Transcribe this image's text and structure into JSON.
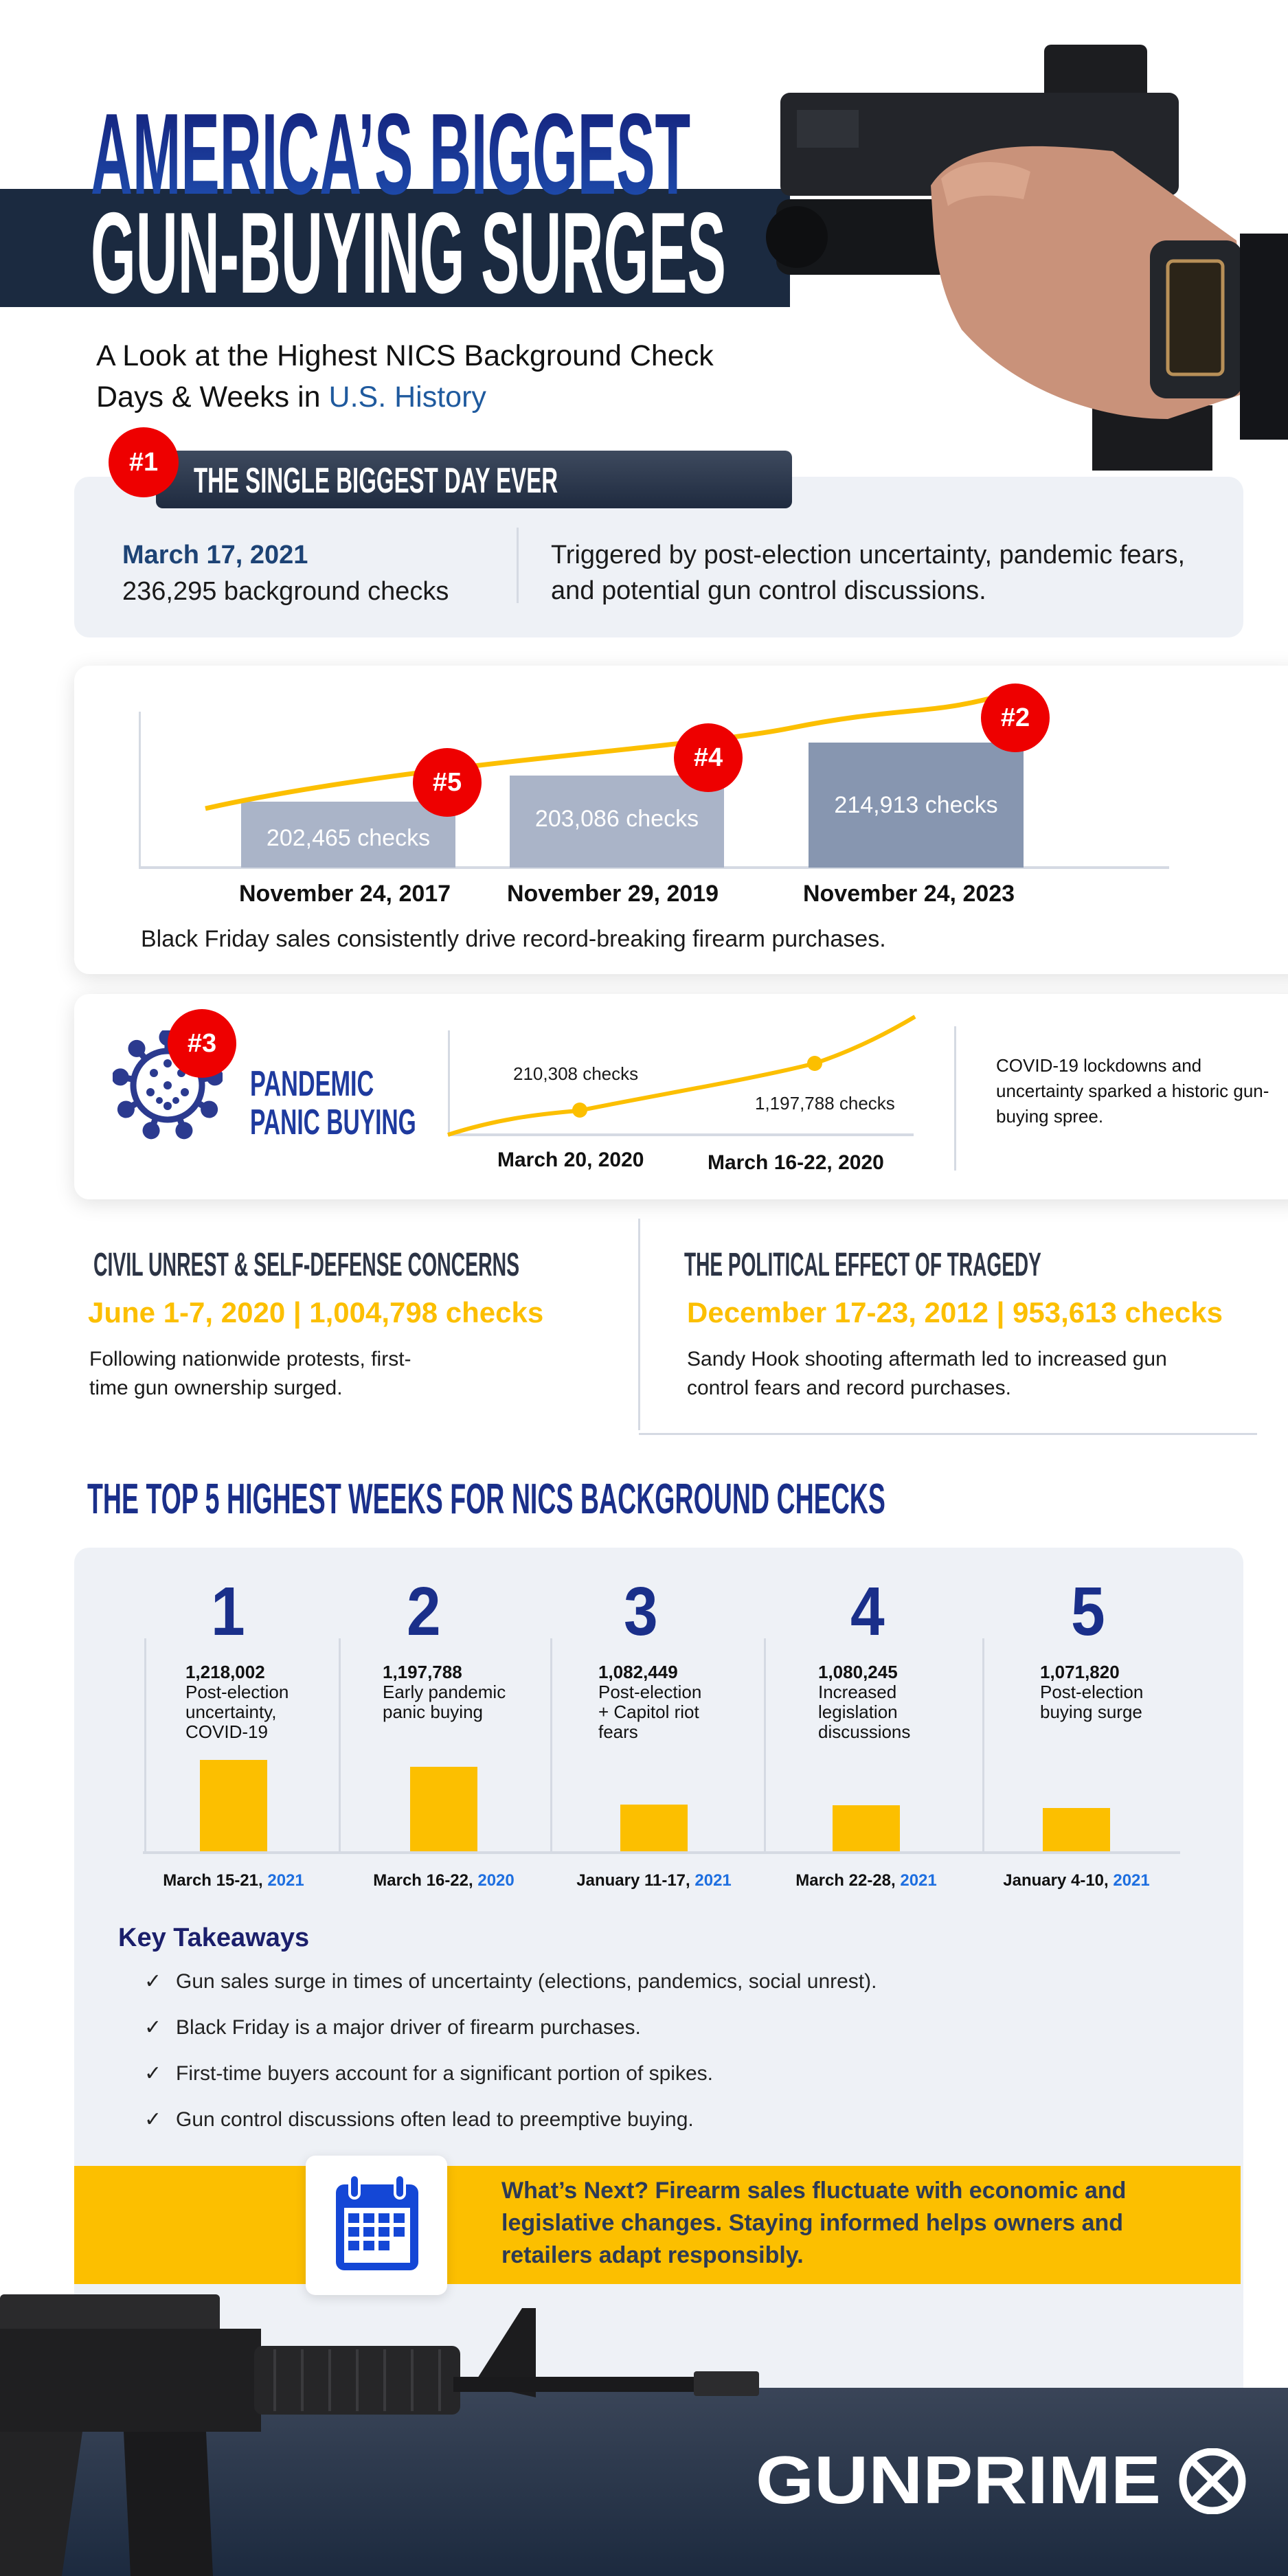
{
  "header": {
    "title_line1": "AMERICA’S BIGGEST",
    "title_line2": "GUN-BUYING SURGES",
    "subtitle_line1": "A Look at the Highest NICS Background Check",
    "subtitle_line2_prefix": "Days & Weeks in ",
    "subtitle_line2_highlight": "U.S. History"
  },
  "biggest_day": {
    "rank": "#1",
    "heading": "THE SINGLE BIGGEST DAY EVER",
    "date": "March 17, 2021",
    "checks": "236,295 background checks",
    "description": "Triggered by post-election uncertainty, pandemic fears, and potential gun control discussions."
  },
  "black_friday": {
    "bars": [
      {
        "rank": "#5",
        "label": "202,465  checks",
        "date": "November 24, 2017",
        "value": 202465
      },
      {
        "rank": "#4",
        "label": "203,086 checks",
        "date": "November 29, 2019",
        "value": 203086
      },
      {
        "rank": "#2",
        "label": "214,913 checks",
        "date": "November 24, 2023",
        "value": 214913
      }
    ],
    "caption": "Black Friday sales consistently drive record-breaking firearm purchases."
  },
  "pandemic": {
    "rank": "#3",
    "title_line1": "PANDEMIC",
    "title_line2": "PANIC BUYING",
    "points": [
      {
        "label": "210,308 checks",
        "date": "March 20, 2020"
      },
      {
        "label": "1,197,788 checks",
        "date": "March 16-22, 2020"
      }
    ],
    "description": "COVID-19 lockdowns and uncertainty sparked a historic gun-buying spree."
  },
  "civil_unrest": {
    "heading": "CIVIL UNREST & SELF-DEFENSE CONCERNS",
    "stat": "June 1-7, 2020 | 1,004,798 checks",
    "description_line1": "Following nationwide protests, first-",
    "description_line2": "time gun ownership surged."
  },
  "tragedy": {
    "heading": "THE POLITICAL EFFECT OF TRAGEDY",
    "stat": "December 17-23, 2012 | 953,613 checks",
    "description_line1": "Sandy Hook shooting aftermath led to increased gun",
    "description_line2": "control fears and record purchases."
  },
  "top5": {
    "heading": "THE TOP 5 HIGHEST WEEKS FOR NICS BACKGROUND CHECKS",
    "weeks": [
      {
        "rank": "1",
        "value": "1,218,002",
        "reason_lines": [
          "Post-election",
          "uncertainty,",
          "COVID-19"
        ],
        "date": "March 15-21, ",
        "year": "2021"
      },
      {
        "rank": "2",
        "value": "1,197,788",
        "reason_lines": [
          "Early pandemic",
          "panic buying"
        ],
        "date": "March 16-22, ",
        "year": "2020"
      },
      {
        "rank": "3",
        "value": "1,082,449",
        "reason_lines": [
          "Post-election",
          "+ Capitol riot",
          "fears"
        ],
        "date": "January 11-17, ",
        "year": "2021"
      },
      {
        "rank": "4",
        "value": "1,080,245",
        "reason_lines": [
          "Increased",
          "legislation",
          "discussions"
        ],
        "date": "March 22-28, ",
        "year": "2021"
      },
      {
        "rank": "5",
        "value": "1,071,820",
        "reason_lines": [
          "Post-election",
          "buying surge"
        ],
        "date": "January 4-10, ",
        "year": "2021"
      }
    ]
  },
  "chart_data": {
    "type": "bar",
    "categories": [
      "March 15-21, 2021",
      "March 16-22, 2020",
      "January 11-17, 2021",
      "March 22-28, 2021",
      "January 4-10, 2021"
    ],
    "values": [
      1218002,
      1197788,
      1082449,
      1080245,
      1071820
    ]
  },
  "takeaways": {
    "heading": "Key Takeaways",
    "check_icon": "✓",
    "items": [
      "Gun sales surge in times of uncertainty (elections, pandemics, social unrest).",
      "Black Friday is a major driver of firearm purchases.",
      "First-time buyers account for a significant portion of spikes.",
      "Gun control discussions often lead to preemptive buying."
    ]
  },
  "whats_next": {
    "line1": "What’s Next? Firearm sales fluctuate with economic and",
    "line2": "legislative changes. Staying informed helps owners and",
    "line3": "retailers adapt responsibly."
  },
  "footer": {
    "logo": "GUNPRIME"
  },
  "colors": {
    "accent_yellow": "#fcbf00",
    "rank_red": "#ee0000",
    "navy": "#1b2a40",
    "title_blue": "#18308e",
    "year_blue": "#1e6fe0"
  }
}
